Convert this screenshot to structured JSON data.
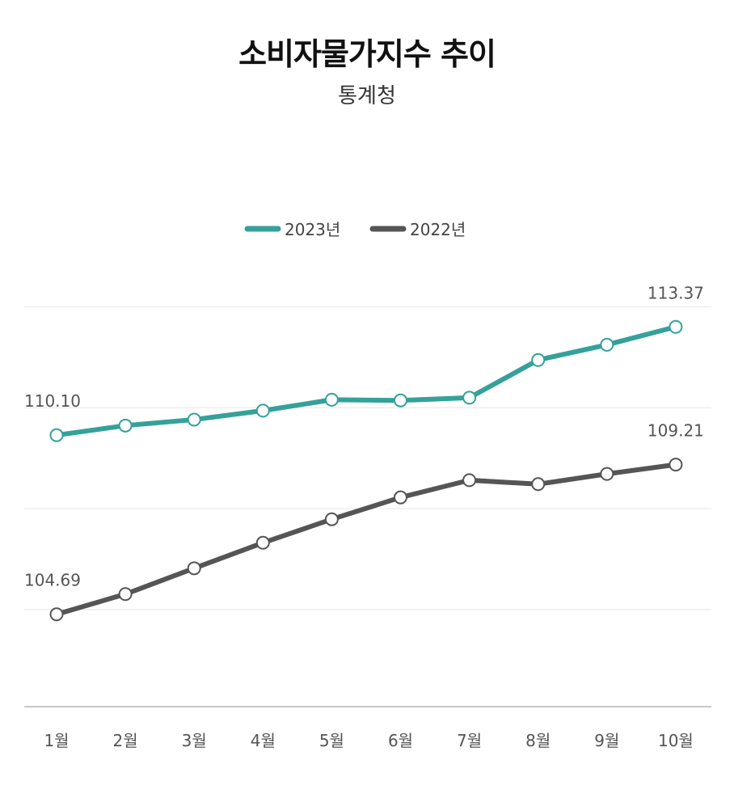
{
  "chart_data": {
    "type": "line",
    "title": "소비자물가지수 추이",
    "subtitle": "통계청",
    "categories": [
      "1월",
      "2월",
      "3월",
      "4월",
      "5월",
      "6월",
      "7월",
      "8월",
      "9월",
      "10월"
    ],
    "series": [
      {
        "name": "2023년",
        "color": "#34A19A",
        "values": [
          110.1,
          110.39,
          110.57,
          110.84,
          111.17,
          111.15,
          111.23,
          112.37,
          112.83,
          113.37
        ]
      },
      {
        "name": "2022년",
        "color": "#555555",
        "values": [
          104.69,
          105.3,
          106.08,
          106.85,
          107.56,
          108.22,
          108.74,
          108.62,
          108.93,
          109.21
        ]
      }
    ],
    "data_labels": [
      {
        "series": 0,
        "index": 0,
        "text": "110.10"
      },
      {
        "series": 0,
        "index": 9,
        "text": "113.37"
      },
      {
        "series": 1,
        "index": 0,
        "text": "104.69"
      },
      {
        "series": 1,
        "index": 9,
        "text": "109.21"
      }
    ],
    "ylim": [
      101.9,
      114.5
    ],
    "gridlines": [
      113.98,
      110.93,
      107.88,
      104.83
    ],
    "grid": true,
    "legend_position": "top-center",
    "xlabel": "",
    "ylabel": ""
  }
}
